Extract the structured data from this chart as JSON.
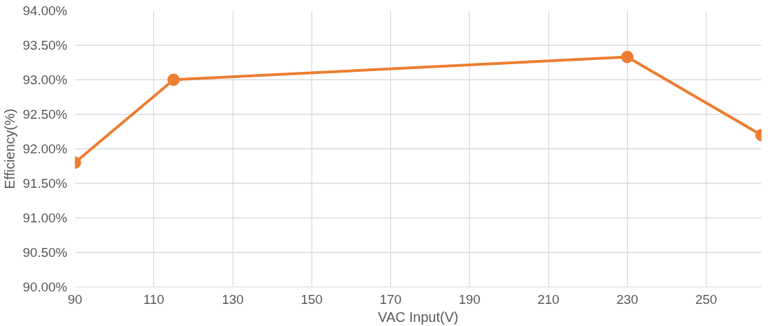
{
  "chart_data": {
    "type": "line",
    "xlabel": "VAC Input(V)",
    "ylabel": "Efficiency(%)",
    "x": [
      90,
      115,
      230,
      264
    ],
    "series": [
      {
        "color": "#ed7d31",
        "values": [
          91.8,
          93.0,
          93.33,
          92.2
        ]
      }
    ],
    "xlim": [
      90,
      264
    ],
    "xticks": [
      90,
      110,
      130,
      150,
      170,
      190,
      210,
      230,
      250
    ],
    "ylim": [
      90,
      94
    ],
    "yticks": [
      {
        "value": 90,
        "label": "90.00%"
      },
      {
        "value": 90.5,
        "label": "90.50%"
      },
      {
        "value": 91,
        "label": "91.00%"
      },
      {
        "value": 91.5,
        "label": "91.50%"
      },
      {
        "value": 92,
        "label": "92.00%"
      },
      {
        "value": 92.5,
        "label": "92.50%"
      },
      {
        "value": 93,
        "label": "93.00%"
      },
      {
        "value": 93.5,
        "label": "93.50%"
      },
      {
        "value": 94,
        "label": "94.00%"
      }
    ],
    "grid": true,
    "marker": "circle",
    "line_style": "solid"
  }
}
